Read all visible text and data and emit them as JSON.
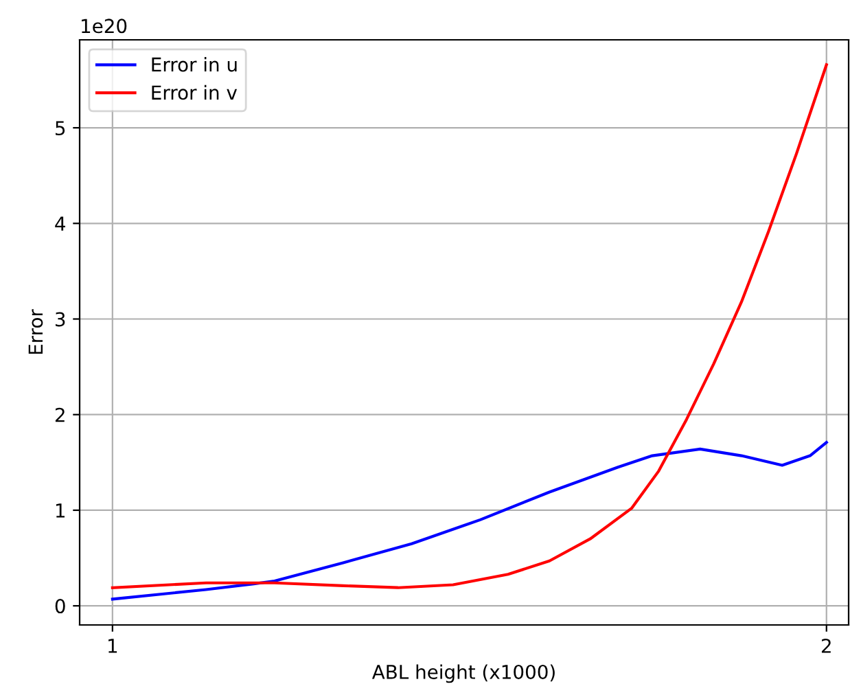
{
  "chart_data": {
    "type": "line",
    "xlabel": "ABL height (x1000)",
    "ylabel": "Error",
    "annotations": [
      "1e20"
    ],
    "xlim": [
      0.954,
      2.031
    ],
    "xticks": [
      1,
      2
    ],
    "ylim": [
      -0.2,
      5.92
    ],
    "yticks": [
      0,
      1,
      2,
      3,
      4,
      5
    ],
    "grid": true,
    "legend": "top left",
    "series": [
      {
        "name": "Error in u",
        "color": "#0000ff",
        "x": [
          1,
          1.131,
          1.198,
          1.227,
          1.323,
          1.419,
          1.515,
          1.612,
          1.708,
          1.756,
          1.823,
          1.881,
          1.938,
          1.977,
          2
        ],
        "values": [
          0.07,
          0.17,
          0.23,
          0.26,
          0.45,
          0.65,
          0.9,
          1.19,
          1.45,
          1.57,
          1.64,
          1.57,
          1.47,
          1.57,
          1.71
        ]
      },
      {
        "name": "Error in v",
        "color": "#ff0000",
        "x": [
          1,
          1.131,
          1.227,
          1.323,
          1.4,
          1.477,
          1.554,
          1.612,
          1.669,
          1.727,
          1.765,
          1.804,
          1.842,
          1.881,
          1.919,
          1.958,
          2
        ],
        "values": [
          0.19,
          0.24,
          0.24,
          0.21,
          0.19,
          0.22,
          0.33,
          0.47,
          0.7,
          1.02,
          1.41,
          1.95,
          2.53,
          3.18,
          3.92,
          4.73,
          5.66
        ]
      }
    ]
  }
}
